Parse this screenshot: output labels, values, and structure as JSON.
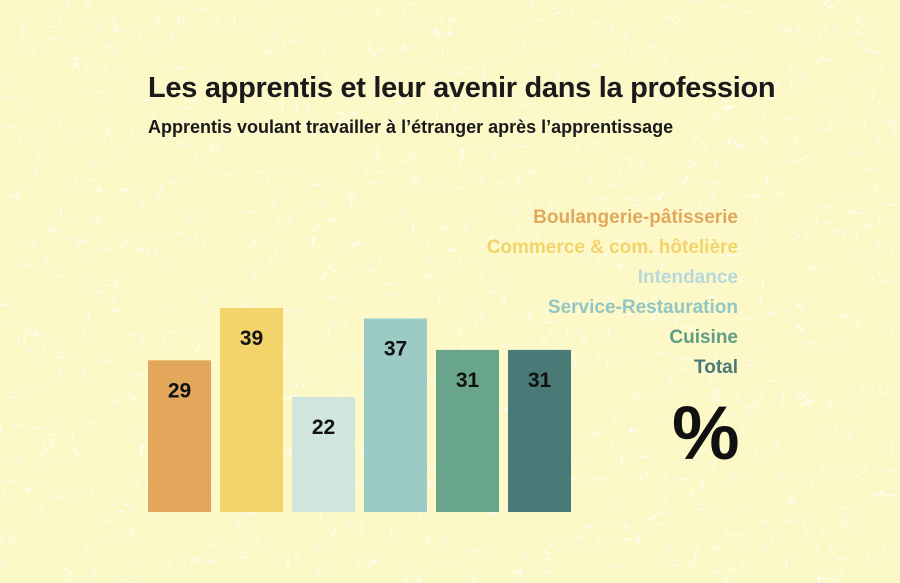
{
  "header": {
    "title": "Les apprentis et leur avenir dans la profession",
    "subtitle": "Apprentis voulant travailler à l’étranger après l’apprentissage"
  },
  "unit": "%",
  "chart_data": {
    "type": "bar",
    "categories": [
      "Boulangerie-pâtisserie",
      "Commerce & com. hôtelière",
      "Intendance",
      "Service-Restauration",
      "Cuisine",
      "Total"
    ],
    "values": [
      29,
      39,
      22,
      37,
      31,
      31
    ],
    "colors": [
      "#e2a75a",
      "#f2d46a",
      "#d0e5dc",
      "#9ccbc5",
      "#69a58a",
      "#4a7a77"
    ],
    "legend_colors": [
      "#e0a85c",
      "#f2d46a",
      "#b8d8dc",
      "#93c6c3",
      "#5f9d87",
      "#4a7a77"
    ],
    "legend_position": "right",
    "grid": false,
    "ylim": [
      0,
      45
    ]
  }
}
